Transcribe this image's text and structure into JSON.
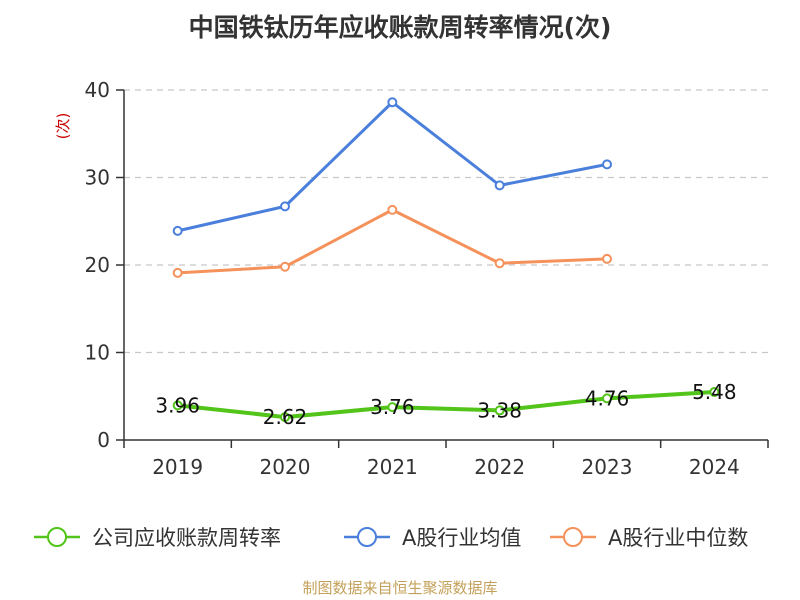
{
  "title": "中国铁钛历年应收账款周转率情况(次)",
  "source": "制图数据来自恒生聚源数据库",
  "chart_data": {
    "type": "line",
    "ylabel": "(次)",
    "categories": [
      "2019",
      "2020",
      "2021",
      "2022",
      "2023",
      "2024"
    ],
    "ylim": [
      0,
      40
    ],
    "yticks": [
      0,
      10,
      20,
      30,
      40
    ],
    "grid": true,
    "legend_position": "bottom",
    "series": [
      {
        "name": "公司应收账款周转率",
        "color": "#52c41a",
        "values": [
          3.96,
          2.62,
          3.76,
          3.38,
          4.76,
          5.48
        ],
        "labels": [
          "3.96",
          "2.62",
          "3.76",
          "3.38",
          "4.76",
          "5.48"
        ]
      },
      {
        "name": "A股行业均值",
        "color": "#4a7fdb",
        "values": [
          23.9,
          26.7,
          38.6,
          29.1,
          31.5,
          null
        ]
      },
      {
        "name": "A股行业中位数",
        "color": "#f5915a",
        "values": [
          19.1,
          19.8,
          26.3,
          20.2,
          20.7,
          null
        ]
      }
    ]
  }
}
